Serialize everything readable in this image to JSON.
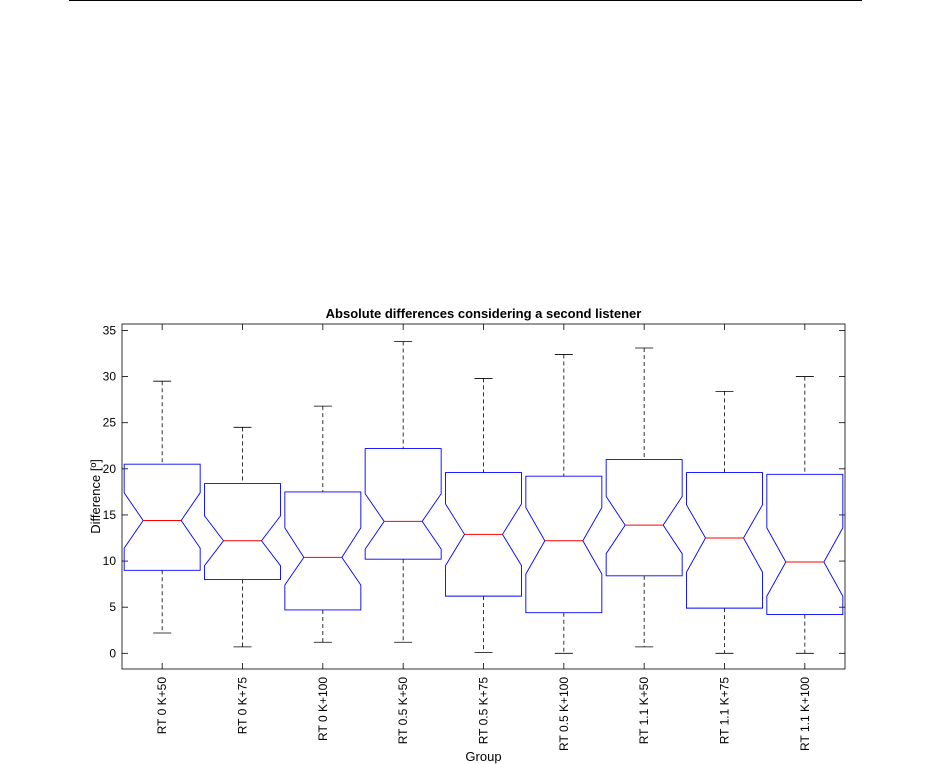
{
  "chart_data": {
    "type": "boxplot",
    "title": "Absolute differences considering a second listener",
    "xlabel": "Group",
    "ylabel": "Difference [º]",
    "ylim": [
      -1.7,
      35.7
    ],
    "yticks": [
      0,
      5,
      10,
      15,
      20,
      25,
      30,
      35
    ],
    "notched": true,
    "grid": false,
    "colors": {
      "box": "#0000ff",
      "median": "#ff0000",
      "whisker": "#000000"
    },
    "categories": [
      "RT 0 K+50",
      "RT 0 K+75",
      "RT 0 K+100",
      "RT 0.5 K+50",
      "RT 0.5 K+75",
      "RT 0.5 K+100",
      "RT 1.1 K+50",
      "RT 1.1 K+75",
      "RT 1.1 K+100"
    ],
    "boxes": [
      {
        "category": "RT 0 K+50",
        "min": 2.2,
        "q1": 9.0,
        "median": 14.4,
        "q3": 20.5,
        "max": 29.5,
        "notch_low": 11.4,
        "notch_high": 17.4
      },
      {
        "category": "RT 0 K+75",
        "min": 0.7,
        "q1": 8.0,
        "median": 12.2,
        "q3": 18.4,
        "max": 24.5,
        "notch_low": 9.5,
        "notch_high": 14.9
      },
      {
        "category": "RT 0 K+100",
        "min": 1.2,
        "q1": 4.7,
        "median": 10.4,
        "q3": 17.5,
        "max": 26.8,
        "notch_low": 7.4,
        "notch_high": 13.6
      },
      {
        "category": "RT 0.5 K+50",
        "min": 1.2,
        "q1": 10.2,
        "median": 14.3,
        "q3": 22.2,
        "max": 33.8,
        "notch_low": 11.3,
        "notch_high": 17.3
      },
      {
        "category": "RT 0.5 K+75",
        "min": 0.1,
        "q1": 6.2,
        "median": 12.9,
        "q3": 19.6,
        "max": 29.8,
        "notch_low": 9.5,
        "notch_high": 16.2
      },
      {
        "category": "RT 0.5 K+100",
        "min": 0.0,
        "q1": 4.4,
        "median": 12.2,
        "q3": 19.2,
        "max": 32.4,
        "notch_low": 8.6,
        "notch_high": 15.8
      },
      {
        "category": "RT 1.1 K+50",
        "min": 0.7,
        "q1": 8.4,
        "median": 13.9,
        "q3": 21.0,
        "max": 33.1,
        "notch_low": 10.8,
        "notch_high": 17.0
      },
      {
        "category": "RT 1.1 K+75",
        "min": 0.0,
        "q1": 4.9,
        "median": 12.5,
        "q3": 19.6,
        "max": 28.4,
        "notch_low": 8.8,
        "notch_high": 16.1
      },
      {
        "category": "RT 1.1 K+100",
        "min": 0.0,
        "q1": 4.2,
        "median": 9.9,
        "q3": 19.4,
        "max": 30.0,
        "notch_low": 6.2,
        "notch_high": 13.6
      }
    ]
  }
}
